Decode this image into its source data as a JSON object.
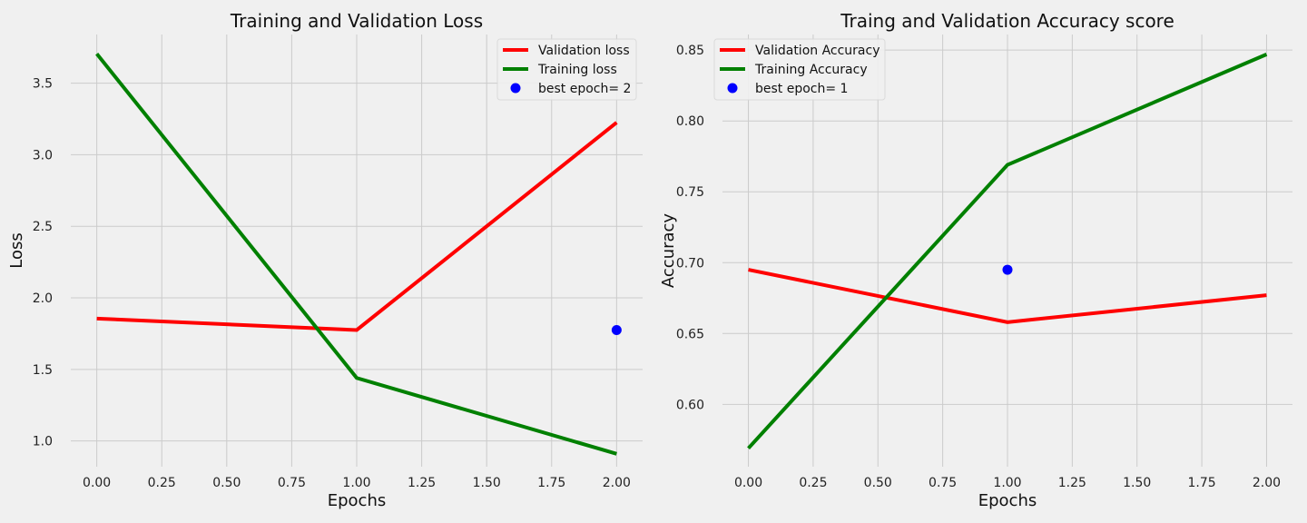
{
  "chart_data": [
    {
      "type": "line",
      "title": "Training and Validation Loss",
      "xlabel": "Epochs",
      "ylabel": "Loss",
      "x": [
        0,
        1,
        2
      ],
      "xlim": [
        -0.1,
        2.1
      ],
      "ylim": [
        0.82,
        3.84
      ],
      "xticks": [
        0.0,
        0.25,
        0.5,
        0.75,
        1.0,
        1.25,
        1.5,
        1.75,
        2.0
      ],
      "xtick_labels": [
        "0.00",
        "0.25",
        "0.50",
        "0.75",
        "1.00",
        "1.25",
        "1.50",
        "1.75",
        "2.00"
      ],
      "yticks": [
        1.0,
        1.5,
        2.0,
        2.5,
        3.0,
        3.5
      ],
      "ytick_labels": [
        "1.0",
        "1.5",
        "2.0",
        "2.5",
        "3.0",
        "3.5"
      ],
      "grid": true,
      "legend_position": "top-right",
      "series": [
        {
          "name": "Validation loss",
          "color": "#ff0000",
          "values": [
            1.855,
            1.775,
            3.225
          ]
        },
        {
          "name": "Training loss",
          "color": "#008000",
          "values": [
            3.705,
            1.44,
            0.91
          ]
        }
      ],
      "marker": {
        "label": "best epoch= 2",
        "color": "#0000ff",
        "x": 2,
        "y": 1.775
      }
    },
    {
      "type": "line",
      "title": "Traing and Validation  Accuracy score",
      "xlabel": "Epochs",
      "ylabel": "Accuracy",
      "x": [
        0,
        1,
        2
      ],
      "xlim": [
        -0.1,
        2.1
      ],
      "ylim": [
        0.556,
        0.861
      ],
      "xticks": [
        0.0,
        0.25,
        0.5,
        0.75,
        1.0,
        1.25,
        1.5,
        1.75,
        2.0
      ],
      "xtick_labels": [
        "0.00",
        "0.25",
        "0.50",
        "0.75",
        "1.00",
        "1.25",
        "1.50",
        "1.75",
        "2.00"
      ],
      "yticks": [
        0.6,
        0.65,
        0.7,
        0.75,
        0.8,
        0.85
      ],
      "ytick_labels": [
        "0.60",
        "0.65",
        "0.70",
        "0.75",
        "0.80",
        "0.85"
      ],
      "grid": true,
      "legend_position": "top-left",
      "series": [
        {
          "name": "Validation Accuracy",
          "color": "#ff0000",
          "values": [
            0.695,
            0.658,
            0.677
          ]
        },
        {
          "name": "Training Accuracy",
          "color": "#008000",
          "values": [
            0.569,
            0.769,
            0.847
          ]
        }
      ],
      "marker": {
        "label": "best epoch= 1",
        "color": "#0000ff",
        "x": 1,
        "y": 0.695
      }
    }
  ]
}
